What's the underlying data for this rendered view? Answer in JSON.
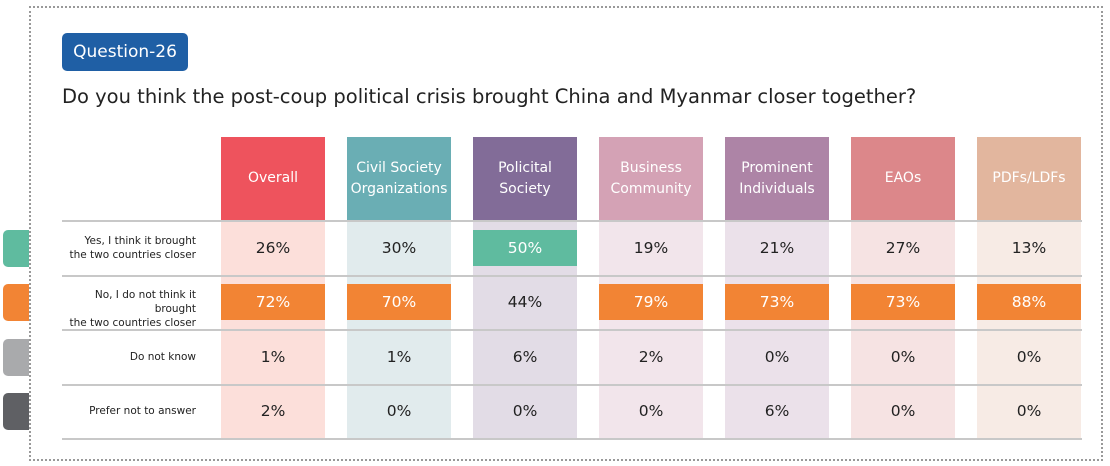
{
  "badge": "Question-26",
  "question": "Do you think the post-coup political crisis brought China and Myanmar closer together?",
  "chart_data": {
    "type": "table",
    "title": "Do you think the post-coup political crisis brought China and Myanmar closer together?",
    "columns": [
      {
        "label": "Overall",
        "color": "#ee535d",
        "tint": "#fbd9d4"
      },
      {
        "label": "Civil Society Organizations",
        "color": "#6aaeb4",
        "tint": "#dce8ea"
      },
      {
        "label": "Policital Society",
        "color": "#826c98",
        "tint": "#ddd6e2"
      },
      {
        "label": "Business Community",
        "color": "#d4a2b5",
        "tint": "#f0e1e7"
      },
      {
        "label": "Prominent Individuals",
        "color": "#ad84a6",
        "tint": "#e8dce6"
      },
      {
        "label": "EAOs",
        "color": "#dc878a",
        "tint": "#f4dede"
      },
      {
        "label": "PDFs/LDFs",
        "color": "#e2b69e",
        "tint": "#f6e8e0"
      }
    ],
    "rows": [
      {
        "label": "Yes, I think it brought the two countries closer",
        "color": "#5fbb9f",
        "values": [
          "26%",
          "30%",
          "50%",
          "19%",
          "21%",
          "27%",
          "13%"
        ],
        "highlight": [
          false,
          false,
          true,
          false,
          false,
          false,
          false
        ]
      },
      {
        "label": "No, I do not think it brought the two countries closer",
        "color": "#f28434",
        "values": [
          "72%",
          "70%",
          "44%",
          "79%",
          "73%",
          "73%",
          "88%"
        ],
        "highlight": [
          true,
          true,
          false,
          true,
          true,
          true,
          true
        ]
      },
      {
        "label": "Do not know",
        "color": "#a9aaac",
        "values": [
          "1%",
          "1%",
          "6%",
          "2%",
          "0%",
          "0%",
          "0%"
        ],
        "highlight": [
          false,
          false,
          false,
          false,
          false,
          false,
          false
        ]
      },
      {
        "label": "Prefer not to answer",
        "color": "#5f6064",
        "values": [
          "2%",
          "0%",
          "0%",
          "0%",
          "6%",
          "0%",
          "0%"
        ],
        "highlight": [
          false,
          false,
          false,
          false,
          false,
          false,
          false
        ]
      }
    ]
  }
}
